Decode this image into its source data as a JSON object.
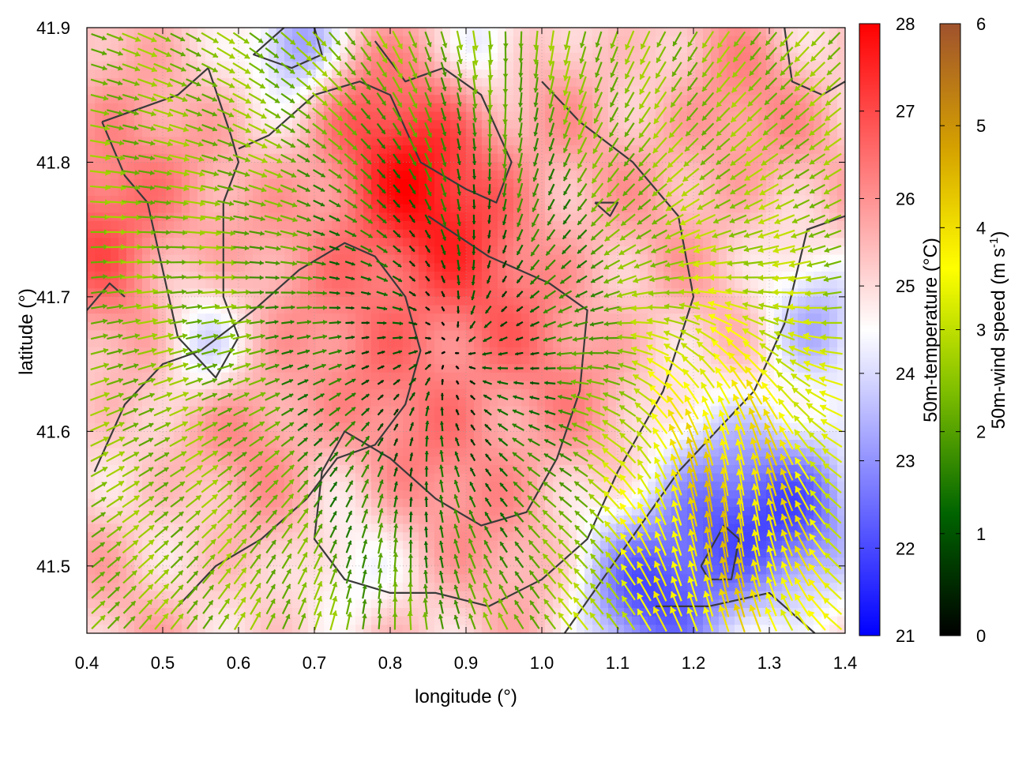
{
  "chart_data": {
    "type": "heatmap",
    "xlabel": "longitude (°)",
    "ylabel": "latitude (°)",
    "xlim": [
      0.4,
      1.4
    ],
    "ylim": [
      41.45,
      41.9
    ],
    "x_ticks": [
      "0.4",
      "0.5",
      "0.6",
      "0.7",
      "0.8",
      "0.9",
      "1.0",
      "1.1",
      "1.2",
      "1.3",
      "1.4"
    ],
    "y_ticks": [
      "41.5",
      "41.6",
      "41.7",
      "41.8",
      "41.9"
    ],
    "grid": true,
    "temperature_colorbar": {
      "label": "50m-temperature (°C)",
      "min": 21,
      "max": 28,
      "ticks": [
        "21",
        "22",
        "23",
        "24",
        "25",
        "26",
        "27",
        "28"
      ],
      "colors": [
        "#0000ff",
        "#ffffff",
        "#ff0000"
      ]
    },
    "wind_colorbar": {
      "label": "50m-wind speed (m s",
      "label_sup": "-1",
      "label_end": ")",
      "min": 0,
      "max": 6,
      "ticks": [
        "0",
        "1",
        "2",
        "3",
        "4",
        "5",
        "6"
      ],
      "colors": [
        "#000000",
        "#006400",
        "#7fbf00",
        "#ffff00",
        "#d4a000",
        "#a0522d"
      ]
    },
    "temperature_field": {
      "base": 25.3,
      "features": [
        {
          "lon": 0.83,
          "lat": 41.79,
          "amp": 1.9,
          "spread": 0.09
        },
        {
          "lon": 0.43,
          "lat": 41.76,
          "amp": 1.6,
          "spread": 0.07
        },
        {
          "lon": 0.9,
          "lat": 41.65,
          "amp": 1.0,
          "spread": 0.14
        },
        {
          "lon": 0.63,
          "lat": 41.61,
          "amp": 0.7,
          "spread": 0.05
        },
        {
          "lon": 0.68,
          "lat": 41.89,
          "amp": -2.6,
          "spread": 0.04
        },
        {
          "lon": 0.93,
          "lat": 41.89,
          "amp": -1.6,
          "spread": 0.04
        },
        {
          "lon": 1.23,
          "lat": 41.52,
          "amp": -3.0,
          "spread": 0.08
        },
        {
          "lon": 1.36,
          "lat": 41.55,
          "amp": -2.0,
          "spread": 0.06
        },
        {
          "lon": 1.12,
          "lat": 41.47,
          "amp": -2.0,
          "spread": 0.06
        },
        {
          "lon": 1.36,
          "lat": 41.68,
          "amp": -1.6,
          "spread": 0.05
        },
        {
          "lon": 0.55,
          "lat": 41.66,
          "amp": -1.2,
          "spread": 0.04
        },
        {
          "lon": 0.74,
          "lat": 41.49,
          "amp": -1.2,
          "spread": 0.05
        },
        {
          "lon": 1.25,
          "lat": 41.83,
          "amp": 0.8,
          "spread": 0.06
        }
      ]
    },
    "wind_field": {
      "convergence_center": {
        "lon": 0.88,
        "lat": 41.66
      },
      "easterly_flow": {
        "lon": 1.25,
        "lat": 41.53,
        "speed": 4.2,
        "spread": 0.12
      },
      "sea_breeze_edge": {
        "lon": 1.3,
        "lat": 41.62,
        "speed": 2.5
      }
    },
    "contours": [
      [
        [
          0.42,
          41.83
        ],
        [
          0.47,
          41.84
        ],
        [
          0.52,
          41.85
        ],
        [
          0.56,
          41.87
        ],
        [
          0.59,
          41.82
        ],
        [
          0.6,
          41.8
        ],
        [
          0.58,
          41.77
        ],
        [
          0.58,
          41.7
        ],
        [
          0.6,
          41.67
        ],
        [
          0.57,
          41.64
        ],
        [
          0.52,
          41.67
        ],
        [
          0.5,
          41.72
        ],
        [
          0.48,
          41.77
        ],
        [
          0.45,
          41.79
        ],
        [
          0.42,
          41.83
        ]
      ],
      [
        [
          0.66,
          41.9
        ],
        [
          0.62,
          41.88
        ],
        [
          0.67,
          41.87
        ],
        [
          0.71,
          41.88
        ],
        [
          0.7,
          41.9
        ]
      ],
      [
        [
          0.78,
          41.89
        ],
        [
          0.82,
          41.86
        ],
        [
          0.87,
          41.87
        ],
        [
          0.92,
          41.85
        ],
        [
          0.96,
          41.8
        ],
        [
          0.94,
          41.77
        ],
        [
          0.9,
          41.78
        ],
        [
          0.84,
          41.8
        ],
        [
          0.8,
          41.85
        ],
        [
          0.76,
          41.86
        ],
        [
          0.7,
          41.85
        ],
        [
          0.64,
          41.82
        ],
        [
          0.6,
          41.81
        ]
      ],
      [
        [
          0.85,
          41.76
        ],
        [
          0.93,
          41.73
        ],
        [
          1.01,
          41.71
        ],
        [
          1.06,
          41.69
        ],
        [
          1.05,
          41.63
        ],
        [
          1.02,
          41.58
        ],
        [
          0.98,
          41.54
        ],
        [
          0.92,
          41.53
        ],
        [
          0.86,
          41.55
        ],
        [
          0.8,
          41.58
        ],
        [
          0.74,
          41.6
        ],
        [
          0.71,
          41.57
        ],
        [
          0.7,
          41.52
        ],
        [
          0.74,
          41.49
        ],
        [
          0.8,
          41.48
        ],
        [
          0.86,
          41.48
        ],
        [
          0.93,
          41.47
        ],
        [
          1.0,
          41.49
        ],
        [
          1.06,
          41.52
        ],
        [
          1.1,
          41.57
        ],
        [
          1.16,
          41.63
        ],
        [
          1.2,
          41.7
        ],
        [
          1.18,
          41.76
        ],
        [
          1.12,
          41.8
        ],
        [
          1.05,
          41.83
        ],
        [
          1.0,
          41.86
        ]
      ],
      [
        [
          0.41,
          41.57
        ],
        [
          0.45,
          41.62
        ],
        [
          0.5,
          41.65
        ],
        [
          0.55,
          41.66
        ],
        [
          0.62,
          41.69
        ],
        [
          0.68,
          41.72
        ],
        [
          0.74,
          41.74
        ],
        [
          0.78,
          41.73
        ],
        [
          0.82,
          41.7
        ],
        [
          0.84,
          41.66
        ],
        [
          0.82,
          41.62
        ],
        [
          0.78,
          41.59
        ],
        [
          0.73,
          41.58
        ],
        [
          0.69,
          41.55
        ],
        [
          0.63,
          41.52
        ],
        [
          0.57,
          41.5
        ],
        [
          0.52,
          41.47
        ]
      ],
      [
        [
          1.03,
          41.45
        ],
        [
          1.08,
          41.49
        ],
        [
          1.13,
          41.53
        ],
        [
          1.18,
          41.57
        ],
        [
          1.23,
          41.6
        ],
        [
          1.28,
          41.63
        ],
        [
          1.32,
          41.68
        ],
        [
          1.35,
          41.75
        ],
        [
          1.4,
          41.76
        ]
      ],
      [
        [
          1.21,
          41.5
        ],
        [
          1.24,
          41.53
        ],
        [
          1.26,
          41.52
        ],
        [
          1.25,
          41.49
        ],
        [
          1.22,
          41.49
        ],
        [
          1.21,
          41.5
        ]
      ],
      [
        [
          1.15,
          41.47
        ],
        [
          1.22,
          41.47
        ],
        [
          1.3,
          41.48
        ],
        [
          1.36,
          41.45
        ]
      ],
      [
        [
          1.07,
          41.77
        ],
        [
          1.1,
          41.77
        ],
        [
          1.09,
          41.76
        ],
        [
          1.07,
          41.77
        ]
      ],
      [
        [
          1.32,
          41.9
        ],
        [
          1.33,
          41.86
        ],
        [
          1.37,
          41.85
        ],
        [
          1.4,
          41.86
        ]
      ],
      [
        [
          0.4,
          41.69
        ],
        [
          0.43,
          41.71
        ],
        [
          0.45,
          41.7
        ]
      ]
    ]
  }
}
